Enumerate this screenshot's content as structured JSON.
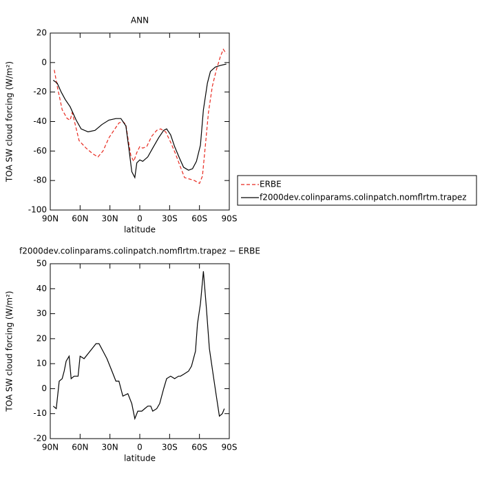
{
  "chart_data": [
    {
      "type": "line",
      "title": "ANN",
      "xlabel": "latitude",
      "ylabel": "TOA SW cloud forcing (W/m²)",
      "xlim": [
        90,
        -90
      ],
      "xticks": [
        {
          "value": 90,
          "label": "90N"
        },
        {
          "value": 60,
          "label": "60N"
        },
        {
          "value": 30,
          "label": "30N"
        },
        0,
        {
          "value": -30,
          "label": "30S"
        },
        {
          "value": -60,
          "label": "60S"
        },
        {
          "value": -90,
          "label": "90S"
        }
      ],
      "ylim": [
        -100,
        20
      ],
      "yticks": [
        -100,
        -80,
        -60,
        -40,
        -20,
        0,
        20
      ],
      "legend": "right",
      "series": [
        {
          "name": "ERBE",
          "color": "#e8281e",
          "dashed": true,
          "x": [
            86,
            83,
            78,
            73,
            70,
            68,
            66,
            61,
            54,
            47,
            42,
            37,
            31,
            26,
            21,
            17,
            14,
            12,
            9,
            6,
            3,
            0,
            -3,
            -7,
            -12,
            -17,
            -21,
            -26,
            -31,
            -36,
            -41,
            -45,
            -50,
            -55,
            -60,
            -63,
            -66,
            -69,
            -73,
            -77,
            -81,
            -84,
            -87
          ],
          "values": [
            -5,
            -16,
            -32,
            -38,
            -39,
            -34,
            -39,
            -53,
            -58,
            -62,
            -64,
            -60,
            -51,
            -46,
            -41,
            -40,
            -42,
            -51,
            -63,
            -67,
            -61,
            -57,
            -58,
            -57,
            -50,
            -46,
            -45,
            -47,
            -54,
            -62,
            -71,
            -78,
            -79,
            -80,
            -82,
            -77,
            -56,
            -34,
            -16,
            -5,
            4,
            9,
            6
          ]
        },
        {
          "name": "f2000dev.colinparams.colinpatch.nomflrtm.trapez",
          "color": "#000000",
          "dashed": false,
          "x": [
            87,
            83,
            79,
            75,
            70,
            64,
            59,
            52,
            45,
            38,
            31,
            24,
            19,
            14,
            11,
            8,
            5,
            3,
            0,
            -3,
            -8,
            -13,
            -19,
            -24,
            -27,
            -31,
            -35,
            -40,
            -44,
            -49,
            -53,
            -57,
            -61,
            -64,
            -68,
            -71,
            -76,
            -81,
            -87
          ],
          "values": [
            -12,
            -14,
            -20,
            -25,
            -30,
            -39,
            -45,
            -47,
            -46,
            -42,
            -39,
            -38,
            -38,
            -43,
            -58,
            -74,
            -78,
            -68,
            -66,
            -67,
            -64,
            -58,
            -51,
            -46,
            -45,
            -49,
            -57,
            -65,
            -71,
            -73,
            -72,
            -67,
            -56,
            -32,
            -14,
            -6,
            -3,
            -2,
            -1
          ]
        }
      ]
    },
    {
      "type": "line",
      "title": "f2000dev.colinparams.colinpatch.nomflrtm.trapez − ERBE",
      "xlabel": "latitude",
      "ylabel": "TOA SW cloud forcing (W/m²)",
      "xlim": [
        90,
        -90
      ],
      "xticks": [
        {
          "value": 90,
          "label": "90N"
        },
        {
          "value": 60,
          "label": "60N"
        },
        {
          "value": 30,
          "label": "30N"
        },
        0,
        {
          "value": -30,
          "label": "30S"
        },
        {
          "value": -60,
          "label": "60S"
        },
        {
          "value": -90,
          "label": "90S"
        }
      ],
      "ylim": [
        -20,
        50
      ],
      "yticks": [
        -20,
        -10,
        0,
        10,
        20,
        30,
        40,
        50
      ],
      "series": [
        {
          "color": "#000000",
          "dashed": false,
          "x": [
            87,
            84,
            81,
            78,
            76,
            74,
            71,
            69,
            66,
            62,
            60,
            56,
            52,
            48,
            44,
            41,
            37,
            33,
            28,
            24,
            21,
            17,
            12,
            8,
            5,
            2,
            -2,
            -5,
            -8,
            -11,
            -13,
            -17,
            -20,
            -24,
            -27,
            -31,
            -35,
            -39,
            -41,
            -45,
            -49,
            -52,
            -56,
            -58,
            -61,
            -64,
            -67,
            -70,
            -74,
            -77,
            -80,
            -83,
            -85
          ],
          "values": [
            -7,
            -8,
            3,
            4,
            7,
            11,
            13,
            4,
            5,
            5,
            13,
            12,
            14,
            16,
            18,
            18,
            15,
            12,
            7,
            3,
            3,
            -3,
            -2,
            -6,
            -12,
            -9,
            -9,
            -8,
            -7,
            -7,
            -9,
            -8,
            -6,
            0,
            4,
            5,
            4,
            5,
            5,
            6,
            7,
            9,
            15,
            26,
            34,
            47,
            32,
            16,
            5,
            -3,
            -11,
            -10,
            -8
          ]
        }
      ]
    }
  ]
}
